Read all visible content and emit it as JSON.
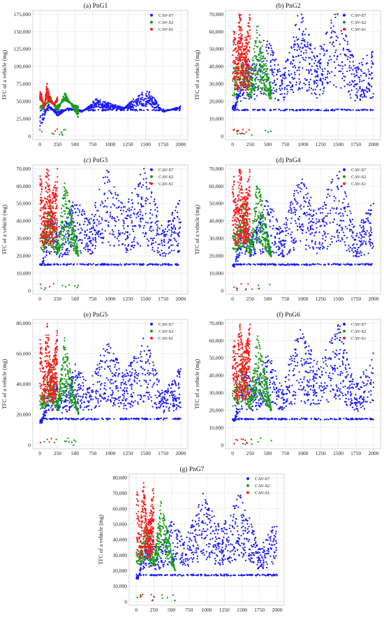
{
  "figure": {
    "ylabel": "TFC of a vehicle (mg)",
    "legend": [
      "CAV-S7",
      "CAV-S2",
      "CAV-S1"
    ],
    "colors": {
      "CAV-S7": "#1a1aff",
      "CAV-S2": "#1a9b1a",
      "CAV-S1": "#ff1a1a"
    }
  },
  "chart_data": [
    {
      "type": "scatter",
      "title": "(a) PnG1",
      "ylabel": "TFC of a vehicle (mg)",
      "xlim": [
        0,
        2000
      ],
      "ylim": [
        0,
        175000
      ],
      "xticks": [
        0,
        250,
        500,
        750,
        1000,
        1250,
        1500,
        1750,
        2000
      ],
      "yticks": [
        0,
        25000,
        50000,
        75000,
        100000,
        125000,
        150000,
        175000
      ],
      "ytick_labels": [
        "0",
        "25,000",
        "50,000",
        "75,000",
        "100,000",
        "125,000",
        "150,000",
        "175,000"
      ],
      "legend_position": "top-right",
      "grid": true,
      "series": [
        {
          "name": "CAV-S7",
          "x": [
            30,
            120,
            250,
            400,
            600,
            800,
            1000,
            1200,
            1400,
            1550,
            1750,
            2000
          ],
          "y": [
            20000,
            45000,
            30000,
            40000,
            35000,
            50000,
            45000,
            40000,
            55000,
            60000,
            35000,
            42000
          ]
        },
        {
          "name": "CAV-S2",
          "x": [
            50,
            150,
            250,
            350,
            450,
            550
          ],
          "y": [
            40000,
            55000,
            35000,
            60000,
            45000,
            30000
          ]
        },
        {
          "name": "CAV-S1",
          "x": [
            20,
            60,
            100,
            150,
            200,
            250
          ],
          "y": [
            60000,
            40000,
            70000,
            50000,
            45000,
            55000
          ]
        }
      ]
    },
    {
      "type": "scatter",
      "title": "(b) PnG2",
      "ylabel": "TFC of a vehicle (mg)",
      "xlim": [
        0,
        2000
      ],
      "ylim": [
        0,
        70000
      ],
      "xticks": [
        0,
        250,
        500,
        750,
        1000,
        1250,
        1500,
        1750,
        2000
      ],
      "yticks": [
        0,
        10000,
        20000,
        30000,
        40000,
        50000,
        60000,
        70000
      ],
      "ytick_labels": [
        "0",
        "10,000",
        "20,000",
        "30,000",
        "40,000",
        "50,000",
        "60,000",
        "70,000"
      ],
      "legend_position": "top-right",
      "grid": true,
      "series": [
        {
          "name": "CAV-S7",
          "x": [
            30,
            150,
            300,
            500,
            700,
            950,
            1200,
            1500,
            1750,
            2000
          ],
          "y": [
            17000,
            40000,
            35000,
            50000,
            30000,
            60000,
            40000,
            62000,
            35000,
            42000
          ]
        },
        {
          "name": "CAV-S2",
          "x": [
            50,
            150,
            250,
            350,
            450,
            550
          ],
          "y": [
            35000,
            45000,
            30000,
            55000,
            40000,
            25000
          ]
        },
        {
          "name": "CAV-S1",
          "x": [
            20,
            60,
            100,
            150,
            200,
            250
          ],
          "y": [
            55000,
            40000,
            65000,
            45000,
            50000,
            60000
          ]
        }
      ]
    },
    {
      "type": "scatter",
      "title": "(c) PnG3",
      "ylabel": "TFC of a vehicle (mg)",
      "xlim": [
        0,
        2000
      ],
      "ylim": [
        0,
        70000
      ],
      "xticks": [
        0,
        250,
        500,
        750,
        1000,
        1250,
        1500,
        1750,
        2000
      ],
      "yticks": [
        0,
        10000,
        20000,
        30000,
        40000,
        50000,
        60000,
        70000
      ],
      "ytick_labels": [
        "0",
        "10,000",
        "20,000",
        "30,000",
        "40,000",
        "50,000",
        "60,000",
        "70,000"
      ],
      "legend_position": "top-right",
      "grid": true,
      "series": [
        {
          "name": "CAV-S7",
          "x": [
            30,
            150,
            300,
            500,
            700,
            950,
            1200,
            1500,
            1750,
            2000
          ],
          "y": [
            15000,
            40000,
            30000,
            45000,
            35000,
            58000,
            40000,
            60000,
            30000,
            45000
          ]
        },
        {
          "name": "CAV-S2",
          "x": [
            50,
            150,
            250,
            350,
            450,
            550
          ],
          "y": [
            30000,
            45000,
            25000,
            55000,
            40000,
            20000
          ]
        },
        {
          "name": "CAV-S1",
          "x": [
            20,
            60,
            100,
            150,
            200,
            250
          ],
          "y": [
            55000,
            40000,
            65000,
            45000,
            50000,
            60000
          ]
        }
      ]
    },
    {
      "type": "scatter",
      "title": "(d) PnG4",
      "ylabel": "TFC of a vehicle (mg)",
      "xlim": [
        0,
        2000
      ],
      "ylim": [
        0,
        70000
      ],
      "xticks": [
        0,
        250,
        500,
        750,
        1000,
        1250,
        1500,
        1750,
        2000
      ],
      "yticks": [
        0,
        10000,
        20000,
        30000,
        40000,
        50000,
        60000,
        70000
      ],
      "ytick_labels": [
        "0",
        "10,000",
        "20,000",
        "30,000",
        "40,000",
        "50,000",
        "60,000",
        "70,000"
      ],
      "legend_position": "top-right",
      "grid": true,
      "series": [
        {
          "name": "CAV-S7",
          "x": [
            30,
            150,
            300,
            500,
            700,
            950,
            1200,
            1500,
            1750,
            2000
          ],
          "y": [
            14000,
            38000,
            30000,
            45000,
            30000,
            55000,
            40000,
            58000,
            30000,
            44000
          ]
        },
        {
          "name": "CAV-S2",
          "x": [
            50,
            150,
            250,
            350,
            450,
            550
          ],
          "y": [
            30000,
            45000,
            25000,
            55000,
            40000,
            20000
          ]
        },
        {
          "name": "CAV-S1",
          "x": [
            20,
            60,
            100,
            150,
            200,
            250
          ],
          "y": [
            55000,
            40000,
            65000,
            45000,
            50000,
            60000
          ]
        }
      ]
    },
    {
      "type": "scatter",
      "title": "(e) PnG5",
      "ylabel": "TFC of a vehicle (mg)",
      "xlim": [
        0,
        2000
      ],
      "ylim": [
        0,
        80000
      ],
      "xticks": [
        0,
        250,
        500,
        750,
        1000,
        1250,
        1500,
        1750,
        2000
      ],
      "yticks": [
        0,
        20000,
        40000,
        60000,
        80000
      ],
      "ytick_labels": [
        "0",
        "20,000",
        "40,000",
        "60,000",
        "80,000"
      ],
      "legend_position": "top-right",
      "grid": true,
      "series": [
        {
          "name": "CAV-S7",
          "x": [
            30,
            150,
            300,
            500,
            700,
            950,
            1200,
            1500,
            1750,
            2000
          ],
          "y": [
            15000,
            40000,
            30000,
            45000,
            35000,
            58000,
            40000,
            60000,
            30000,
            45000
          ]
        },
        {
          "name": "CAV-S2",
          "x": [
            50,
            150,
            250,
            350,
            450,
            550
          ],
          "y": [
            30000,
            50000,
            25000,
            60000,
            40000,
            20000
          ]
        },
        {
          "name": "CAV-S1",
          "x": [
            20,
            60,
            100,
            150,
            200,
            250
          ],
          "y": [
            60000,
            40000,
            70000,
            45000,
            50000,
            65000
          ]
        }
      ]
    },
    {
      "type": "scatter",
      "title": "(f) PnG6",
      "ylabel": "TFC of a vehicle (mg)",
      "xlim": [
        0,
        2000
      ],
      "ylim": [
        0,
        70000
      ],
      "xticks": [
        0,
        250,
        500,
        750,
        1000,
        1250,
        1500,
        1750,
        2000
      ],
      "yticks": [
        0,
        10000,
        20000,
        30000,
        40000,
        50000,
        60000,
        70000
      ],
      "ytick_labels": [
        "0",
        "10,000",
        "20,000",
        "30,000",
        "40,000",
        "50,000",
        "60,000",
        "70,000"
      ],
      "legend_position": "top-right",
      "grid": true,
      "series": [
        {
          "name": "CAV-S7",
          "x": [
            30,
            150,
            300,
            500,
            700,
            950,
            1200,
            1500,
            1750,
            2000
          ],
          "y": [
            14000,
            40000,
            30000,
            45000,
            30000,
            56000,
            40000,
            60000,
            30000,
            45000
          ]
        },
        {
          "name": "CAV-S2",
          "x": [
            50,
            150,
            250,
            350,
            450,
            550
          ],
          "y": [
            30000,
            45000,
            25000,
            55000,
            40000,
            20000
          ]
        },
        {
          "name": "CAV-S1",
          "x": [
            20,
            60,
            100,
            150,
            200,
            250
          ],
          "y": [
            55000,
            40000,
            65000,
            45000,
            50000,
            60000
          ]
        }
      ]
    },
    {
      "type": "scatter",
      "title": "(g) PnG7",
      "ylabel": "TFC of a vehicle (mg)",
      "xlim": [
        0,
        2000
      ],
      "ylim": [
        0,
        80000
      ],
      "xticks": [
        0,
        250,
        500,
        750,
        1000,
        1250,
        1500,
        1750,
        2000
      ],
      "yticks": [
        0,
        10000,
        20000,
        30000,
        40000,
        50000,
        60000,
        70000,
        80000
      ],
      "ytick_labels": [
        "0",
        "10,000",
        "20,000",
        "30,000",
        "40,000",
        "50,000",
        "60,000",
        "70,000",
        "80,000"
      ],
      "legend_position": "top-right",
      "grid": true,
      "series": [
        {
          "name": "CAV-S7",
          "x": [
            30,
            150,
            300,
            500,
            700,
            950,
            1200,
            1500,
            1750,
            2000
          ],
          "y": [
            15000,
            40000,
            30000,
            45000,
            35000,
            58000,
            40000,
            60000,
            30000,
            45000
          ]
        },
        {
          "name": "CAV-S2",
          "x": [
            50,
            150,
            250,
            350,
            450,
            550
          ],
          "y": [
            30000,
            45000,
            25000,
            55000,
            40000,
            20000
          ]
        },
        {
          "name": "CAV-S1",
          "x": [
            20,
            60,
            100,
            150,
            200,
            250
          ],
          "y": [
            60000,
            40000,
            70000,
            45000,
            50000,
            65000
          ]
        }
      ]
    }
  ]
}
